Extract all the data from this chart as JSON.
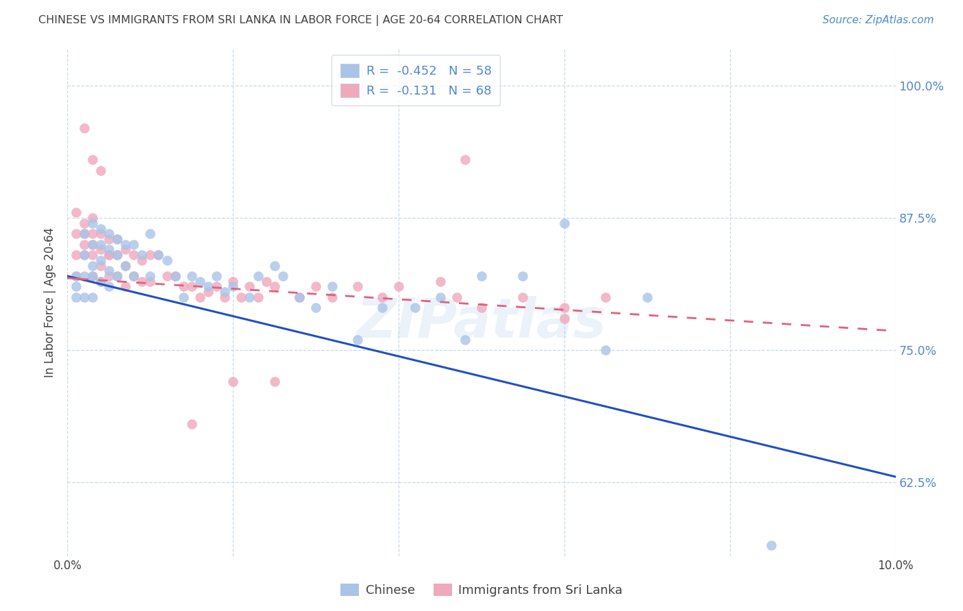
{
  "title": "CHINESE VS IMMIGRANTS FROM SRI LANKA IN LABOR FORCE | AGE 20-64 CORRELATION CHART",
  "source": "Source: ZipAtlas.com",
  "ylabel": "In Labor Force | Age 20-64",
  "xlim": [
    0.0,
    0.1
  ],
  "ylim": [
    0.555,
    1.035
  ],
  "legend_label_1": "Chinese",
  "legend_label_2": "Immigrants from Sri Lanka",
  "legend_R1": "-0.452",
  "legend_N1": "58",
  "legend_R2": "-0.131",
  "legend_N2": "68",
  "blue_color": "#a8c4e8",
  "pink_color": "#f0a8bc",
  "blue_line_color": "#2050c0",
  "pink_line_color": "#e06080",
  "text_color": "#404040",
  "right_axis_color": "#5088d0",
  "grid_color": "#c8d8ec",
  "yticks_right": [
    0.625,
    0.75,
    0.875,
    1.0
  ],
  "ytick_right_labels": [
    "62.5%",
    "75.0%",
    "87.5%",
    "100.0%"
  ],
  "watermark": "ZIPatlas",
  "blue_line_x0": 0.0,
  "blue_line_y0": 0.82,
  "blue_line_x1": 0.1,
  "blue_line_y1": 0.63,
  "pink_line_x0": 0.0,
  "pink_line_y0": 0.818,
  "pink_line_x1": 0.1,
  "pink_line_y1": 0.768,
  "chinese_x": [
    0.001,
    0.001,
    0.001,
    0.002,
    0.002,
    0.002,
    0.002,
    0.003,
    0.003,
    0.003,
    0.003,
    0.003,
    0.004,
    0.004,
    0.004,
    0.004,
    0.005,
    0.005,
    0.005,
    0.005,
    0.006,
    0.006,
    0.006,
    0.007,
    0.007,
    0.008,
    0.008,
    0.009,
    0.01,
    0.01,
    0.011,
    0.012,
    0.013,
    0.014,
    0.015,
    0.016,
    0.017,
    0.018,
    0.019,
    0.02,
    0.022,
    0.023,
    0.025,
    0.026,
    0.028,
    0.03,
    0.032,
    0.035,
    0.038,
    0.042,
    0.045,
    0.048,
    0.05,
    0.055,
    0.06,
    0.065,
    0.07,
    0.085
  ],
  "chinese_y": [
    0.82,
    0.81,
    0.8,
    0.86,
    0.84,
    0.82,
    0.8,
    0.87,
    0.85,
    0.83,
    0.82,
    0.8,
    0.865,
    0.85,
    0.835,
    0.815,
    0.86,
    0.845,
    0.825,
    0.81,
    0.855,
    0.84,
    0.82,
    0.85,
    0.83,
    0.85,
    0.82,
    0.84,
    0.86,
    0.82,
    0.84,
    0.835,
    0.82,
    0.8,
    0.82,
    0.815,
    0.81,
    0.82,
    0.805,
    0.81,
    0.8,
    0.82,
    0.83,
    0.82,
    0.8,
    0.79,
    0.81,
    0.76,
    0.79,
    0.79,
    0.8,
    0.76,
    0.82,
    0.82,
    0.87,
    0.75,
    0.8,
    0.565
  ],
  "srilanka_x": [
    0.001,
    0.001,
    0.001,
    0.001,
    0.002,
    0.002,
    0.002,
    0.002,
    0.003,
    0.003,
    0.003,
    0.003,
    0.003,
    0.004,
    0.004,
    0.004,
    0.004,
    0.005,
    0.005,
    0.005,
    0.005,
    0.006,
    0.006,
    0.006,
    0.007,
    0.007,
    0.007,
    0.008,
    0.008,
    0.009,
    0.009,
    0.01,
    0.01,
    0.011,
    0.012,
    0.013,
    0.014,
    0.015,
    0.016,
    0.017,
    0.018,
    0.019,
    0.02,
    0.021,
    0.022,
    0.023,
    0.024,
    0.025,
    0.028,
    0.03,
    0.032,
    0.035,
    0.038,
    0.04,
    0.045,
    0.047,
    0.05,
    0.055,
    0.06,
    0.065,
    0.003,
    0.004,
    0.002,
    0.048,
    0.02,
    0.025,
    0.015,
    0.06
  ],
  "srilanka_y": [
    0.84,
    0.86,
    0.82,
    0.88,
    0.86,
    0.87,
    0.84,
    0.85,
    0.875,
    0.86,
    0.84,
    0.85,
    0.82,
    0.86,
    0.845,
    0.83,
    0.815,
    0.855,
    0.84,
    0.82,
    0.84,
    0.855,
    0.84,
    0.82,
    0.845,
    0.83,
    0.81,
    0.84,
    0.82,
    0.835,
    0.815,
    0.84,
    0.815,
    0.84,
    0.82,
    0.82,
    0.81,
    0.81,
    0.8,
    0.805,
    0.81,
    0.8,
    0.815,
    0.8,
    0.81,
    0.8,
    0.815,
    0.81,
    0.8,
    0.81,
    0.8,
    0.81,
    0.8,
    0.81,
    0.815,
    0.8,
    0.79,
    0.8,
    0.79,
    0.8,
    0.93,
    0.92,
    0.96,
    0.93,
    0.72,
    0.72,
    0.68,
    0.78
  ]
}
